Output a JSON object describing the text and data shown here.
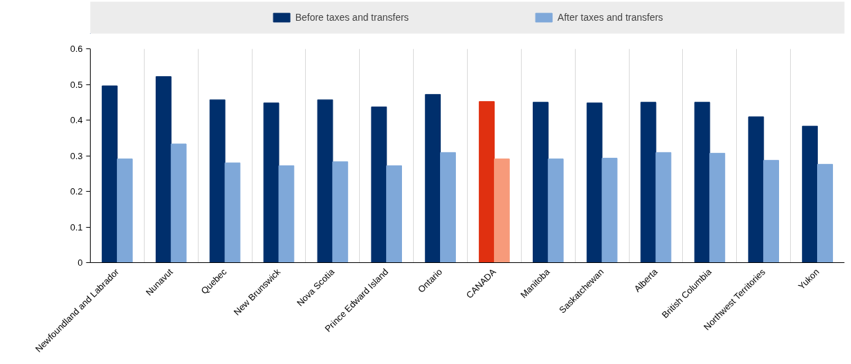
{
  "chart_data": {
    "type": "bar",
    "categories": [
      "Newfoundland and Labrador",
      "Nunavut",
      "Quebec",
      "New Brunswick",
      "Nova Scotia",
      "Prince Edward Island",
      "Ontario",
      "CANADA",
      "Manitoba",
      "Saskatchewan",
      "Alberta",
      "British Columbia",
      "Northwest Territories",
      "Yukon"
    ],
    "series": [
      {
        "name": "Before taxes and transfers",
        "color": "#002f6c",
        "colors": [
          "#002f6c",
          "#002f6c",
          "#002f6c",
          "#002f6c",
          "#002f6c",
          "#002f6c",
          "#002f6c",
          "#e03010",
          "#002f6c",
          "#002f6c",
          "#002f6c",
          "#002f6c",
          "#002f6c",
          "#002f6c"
        ],
        "values": [
          0.496,
          0.522,
          0.457,
          0.448,
          0.457,
          0.437,
          0.472,
          0.452,
          0.45,
          0.448,
          0.45,
          0.45,
          0.409,
          0.383
        ]
      },
      {
        "name": "After taxes and transfers",
        "color": "#7fa8d9",
        "colors": [
          "#7fa8d9",
          "#7fa8d9",
          "#7fa8d9",
          "#7fa8d9",
          "#7fa8d9",
          "#7fa8d9",
          "#7fa8d9",
          "#f79a7a",
          "#7fa8d9",
          "#7fa8d9",
          "#7fa8d9",
          "#7fa8d9",
          "#7fa8d9",
          "#7fa8d9"
        ],
        "values": [
          0.291,
          0.333,
          0.28,
          0.272,
          0.283,
          0.272,
          0.309,
          0.291,
          0.291,
          0.293,
          0.309,
          0.307,
          0.287,
          0.276
        ]
      }
    ],
    "ylim": [
      0,
      0.6
    ],
    "yticks": [
      {
        "value": 0,
        "label": "0"
      },
      0.1,
      0.2,
      0.3,
      0.4,
      0.5,
      0.6
    ],
    "grid": "x",
    "legend": "top"
  }
}
